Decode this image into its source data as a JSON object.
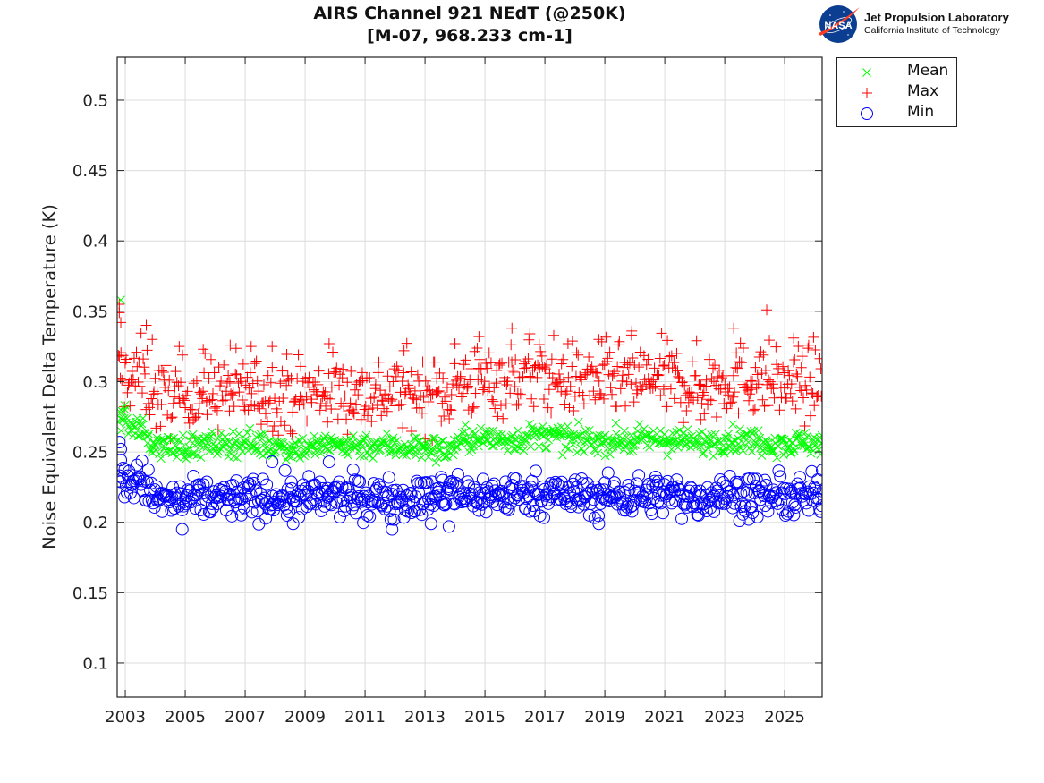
{
  "header": {
    "title_line1": "AIRS Channel 921 NEdT (@250K)",
    "title_line2": "[M-07, 968.233 cm-1]"
  },
  "logo": {
    "icon": "nasa-meatball-icon",
    "badge_text": "NASA",
    "line1": "Jet Propulsion Laboratory",
    "line2": "California Institute of Technology",
    "colors": {
      "globe": "#0b3d91",
      "swoosh": "#fc3d21"
    }
  },
  "chart_data": {
    "type": "scatter",
    "title": "AIRS Channel 921 NEdT (@250K) [M-07, 968.233 cm-1]",
    "xlabel": "",
    "ylabel": "Noise Equivalent Delta Temperature (K)",
    "xlim": [
      2002.73,
      2026.25
    ],
    "ylim": [
      0.0758,
      0.5305
    ],
    "xticks": [
      2003,
      2005,
      2007,
      2009,
      2011,
      2013,
      2015,
      2017,
      2019,
      2021,
      2023,
      2025
    ],
    "xtick_labels": [
      "2003",
      "2005",
      "2007",
      "2009",
      "2011",
      "2013",
      "2015",
      "2017",
      "2019",
      "2021",
      "2023",
      "2025"
    ],
    "yticks": [
      0.1,
      0.15,
      0.2,
      0.25,
      0.3,
      0.35,
      0.4,
      0.45,
      0.5
    ],
    "ytick_labels": [
      "0.1",
      "0.15",
      "0.2",
      "0.25",
      "0.3",
      "0.35",
      "0.4",
      "0.45",
      "0.5"
    ],
    "grid": true,
    "legend_position": "outside-top-right",
    "x_data_range": [
      2002.75,
      2026.3
    ],
    "samples_per_year": 30,
    "series": [
      {
        "name": "Max",
        "marker": "plus",
        "color": "#ff0000",
        "trend": [
          [
            2002.75,
            0.305
          ],
          [
            2003.2,
            0.303
          ],
          [
            2003.6,
            0.305
          ],
          [
            2004.0,
            0.288
          ],
          [
            2005.0,
            0.289
          ],
          [
            2006.0,
            0.293
          ],
          [
            2007.0,
            0.293
          ],
          [
            2008.0,
            0.292
          ],
          [
            2009.0,
            0.292
          ],
          [
            2010.0,
            0.293
          ],
          [
            2011.0,
            0.291
          ],
          [
            2012.0,
            0.293
          ],
          [
            2013.0,
            0.292
          ],
          [
            2013.6,
            0.291
          ],
          [
            2014.2,
            0.3
          ],
          [
            2015.0,
            0.3
          ],
          [
            2016.0,
            0.303
          ],
          [
            2017.0,
            0.305
          ],
          [
            2018.0,
            0.301
          ],
          [
            2019.0,
            0.301
          ],
          [
            2020.0,
            0.301
          ],
          [
            2021.0,
            0.302
          ],
          [
            2022.0,
            0.296
          ],
          [
            2023.0,
            0.301
          ],
          [
            2024.0,
            0.303
          ],
          [
            2025.0,
            0.298
          ],
          [
            2026.3,
            0.3
          ]
        ],
        "spread": 0.013,
        "outliers": [
          [
            2002.8,
            0.355
          ],
          [
            2002.8,
            0.349
          ],
          [
            2002.85,
            0.342
          ],
          [
            2003.7,
            0.34
          ],
          [
            2003.9,
            0.33
          ],
          [
            2004.8,
            0.325
          ],
          [
            2005.6,
            0.323
          ],
          [
            2006.5,
            0.326
          ],
          [
            2007.2,
            0.325
          ],
          [
            2007.9,
            0.325
          ],
          [
            2009.8,
            0.327
          ],
          [
            2012.3,
            0.322
          ],
          [
            2014.0,
            0.327
          ],
          [
            2014.8,
            0.332
          ],
          [
            2015.9,
            0.338
          ],
          [
            2016.5,
            0.334
          ],
          [
            2018.8,
            0.33
          ],
          [
            2019.9,
            0.336
          ],
          [
            2022.2,
            0.273
          ],
          [
            2023.3,
            0.338
          ],
          [
            2024.4,
            0.351
          ],
          [
            2025.3,
            0.331
          ]
        ]
      },
      {
        "name": "Mean",
        "marker": "x",
        "color": "#00ff00",
        "trend": [
          [
            2002.75,
            0.276
          ],
          [
            2003.1,
            0.27
          ],
          [
            2003.5,
            0.266
          ],
          [
            2004.0,
            0.254
          ],
          [
            2005.0,
            0.254
          ],
          [
            2006.0,
            0.255
          ],
          [
            2007.0,
            0.257
          ],
          [
            2008.0,
            0.254
          ],
          [
            2009.0,
            0.253
          ],
          [
            2010.0,
            0.255
          ],
          [
            2011.0,
            0.255
          ],
          [
            2012.0,
            0.254
          ],
          [
            2013.0,
            0.253
          ],
          [
            2013.7,
            0.251
          ],
          [
            2014.3,
            0.259
          ],
          [
            2015.0,
            0.259
          ],
          [
            2016.0,
            0.259
          ],
          [
            2017.0,
            0.262
          ],
          [
            2018.0,
            0.258
          ],
          [
            2019.0,
            0.258
          ],
          [
            2020.0,
            0.258
          ],
          [
            2021.0,
            0.259
          ],
          [
            2022.0,
            0.256
          ],
          [
            2023.0,
            0.259
          ],
          [
            2024.0,
            0.258
          ],
          [
            2025.0,
            0.256
          ],
          [
            2026.3,
            0.257
          ]
        ],
        "spread": 0.0045,
        "outliers": [
          [
            2002.85,
            0.358
          ],
          [
            2003.0,
            0.28
          ]
        ]
      },
      {
        "name": "Min",
        "marker": "circle",
        "color": "#0000ff",
        "trend": [
          [
            2002.75,
            0.232
          ],
          [
            2003.1,
            0.228
          ],
          [
            2003.5,
            0.232
          ],
          [
            2004.0,
            0.216
          ],
          [
            2005.0,
            0.215
          ],
          [
            2006.0,
            0.217
          ],
          [
            2007.0,
            0.217
          ],
          [
            2008.0,
            0.217
          ],
          [
            2009.0,
            0.217
          ],
          [
            2010.0,
            0.218
          ],
          [
            2011.0,
            0.217
          ],
          [
            2012.0,
            0.218
          ],
          [
            2013.0,
            0.217
          ],
          [
            2013.8,
            0.222
          ],
          [
            2014.3,
            0.219
          ],
          [
            2015.0,
            0.219
          ],
          [
            2016.0,
            0.22
          ],
          [
            2017.0,
            0.221
          ],
          [
            2018.0,
            0.218
          ],
          [
            2019.0,
            0.219
          ],
          [
            2020.0,
            0.219
          ],
          [
            2021.0,
            0.22
          ],
          [
            2022.0,
            0.217
          ],
          [
            2023.0,
            0.22
          ],
          [
            2024.0,
            0.219
          ],
          [
            2025.0,
            0.217
          ],
          [
            2026.3,
            0.219
          ]
        ],
        "spread": 0.007,
        "outliers": [
          [
            2002.8,
            0.257
          ],
          [
            2002.85,
            0.252
          ],
          [
            2004.9,
            0.195
          ],
          [
            2008.6,
            0.199
          ],
          [
            2011.9,
            0.195
          ],
          [
            2013.2,
            0.199
          ],
          [
            2013.8,
            0.197
          ],
          [
            2018.8,
            0.199
          ],
          [
            2023.8,
            0.202
          ],
          [
            2026.25,
            0.237
          ],
          [
            2009.8,
            0.243
          ],
          [
            2007.9,
            0.243
          ]
        ]
      }
    ],
    "legend_order": [
      "Mean",
      "Max",
      "Min"
    ]
  }
}
